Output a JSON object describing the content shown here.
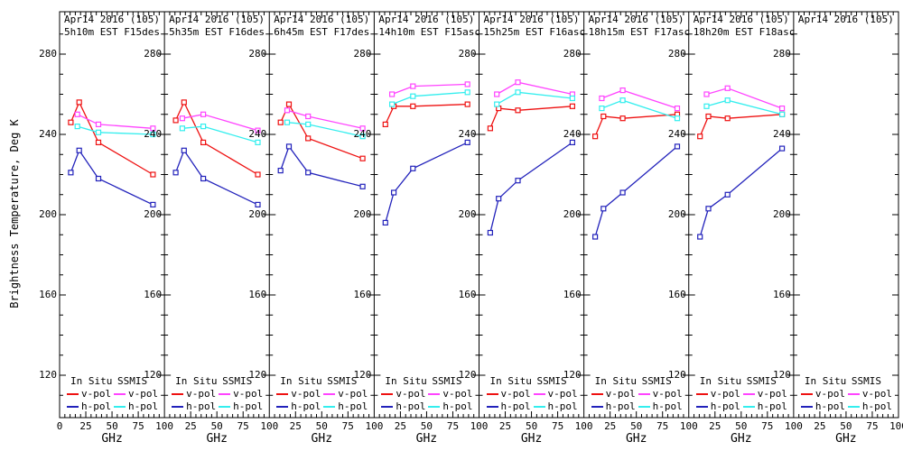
{
  "y_axis_title": "Brightness Temperature, Deg K",
  "x_axis_unit": "GHz",
  "y_tick_labels": [
    "280",
    "240",
    "200",
    "160",
    "120"
  ],
  "x_tick_labels": [
    "0",
    "25",
    "50",
    "75",
    "100"
  ],
  "legend": {
    "insitu_header": "In Situ",
    "ssmis_header": "SSMIS",
    "vpol_label": "v-pol",
    "hpol_label": "h-pol"
  },
  "colors": {
    "insitu_vpol": "#ee1111",
    "insitu_hpol": "#2222bb",
    "ssmis_vpol": "#ff44ff",
    "ssmis_hpol": "#33eeee",
    "axis": "#000000",
    "background": "#ffffff"
  },
  "chart_data": [
    {
      "type": "line",
      "title_line1": "Apr14 2016 (105)",
      "title_line2": "5h10m EST F15des",
      "xlabel": "GHz",
      "ylabel": "Brightness Temperature, Deg K",
      "xlim": [
        0,
        100
      ],
      "ylim": [
        100,
        300
      ],
      "series": [
        {
          "name": "In Situ v-pol",
          "group": "insitu",
          "pol": "v",
          "x": [
            10.7,
            18.7,
            37,
            89
          ],
          "values": [
            246,
            256,
            236,
            220
          ]
        },
        {
          "name": "In Situ h-pol",
          "group": "insitu",
          "pol": "h",
          "x": [
            10.7,
            18.7,
            37,
            89
          ],
          "values": [
            221,
            232,
            218,
            205
          ]
        },
        {
          "name": "SSMIS v-pol",
          "group": "ssmis",
          "pol": "v",
          "x": [
            17,
            37,
            89
          ],
          "values": [
            250,
            245,
            243
          ]
        },
        {
          "name": "SSMIS h-pol",
          "group": "ssmis",
          "pol": "h",
          "x": [
            17,
            37,
            89
          ],
          "values": [
            244,
            241,
            240
          ]
        }
      ]
    },
    {
      "type": "line",
      "title_line1": "Apr14 2016 (105)",
      "title_line2": "5h35m EST F16des",
      "xlabel": "GHz",
      "ylabel": "Brightness Temperature, Deg K",
      "xlim": [
        0,
        100
      ],
      "ylim": [
        100,
        300
      ],
      "series": [
        {
          "name": "In Situ v-pol",
          "group": "insitu",
          "pol": "v",
          "x": [
            10.7,
            18.7,
            37,
            89
          ],
          "values": [
            247,
            256,
            236,
            220
          ]
        },
        {
          "name": "In Situ h-pol",
          "group": "insitu",
          "pol": "h",
          "x": [
            10.7,
            18.7,
            37,
            89
          ],
          "values": [
            221,
            232,
            218,
            205
          ]
        },
        {
          "name": "SSMIS v-pol",
          "group": "ssmis",
          "pol": "v",
          "x": [
            17,
            37,
            89
          ],
          "values": [
            248,
            250,
            242
          ]
        },
        {
          "name": "SSMIS h-pol",
          "group": "ssmis",
          "pol": "h",
          "x": [
            17,
            37,
            89
          ],
          "values": [
            243,
            244,
            236
          ]
        }
      ]
    },
    {
      "type": "line",
      "title_line1": "Apr14 2016 (105)",
      "title_line2": "6h45m EST F17des",
      "xlabel": "GHz",
      "ylabel": "Brightness Temperature, Deg K",
      "xlim": [
        0,
        100
      ],
      "ylim": [
        100,
        300
      ],
      "series": [
        {
          "name": "In Situ v-pol",
          "group": "insitu",
          "pol": "v",
          "x": [
            10.7,
            18.7,
            37,
            89
          ],
          "values": [
            246,
            255,
            238,
            228
          ]
        },
        {
          "name": "In Situ h-pol",
          "group": "insitu",
          "pol": "h",
          "x": [
            10.7,
            18.7,
            37,
            89
          ],
          "values": [
            222,
            234,
            221,
            214
          ]
        },
        {
          "name": "SSMIS v-pol",
          "group": "ssmis",
          "pol": "v",
          "x": [
            17,
            37,
            89
          ],
          "values": [
            252,
            249,
            243
          ]
        },
        {
          "name": "SSMIS h-pol",
          "group": "ssmis",
          "pol": "h",
          "x": [
            17,
            37,
            89
          ],
          "values": [
            246,
            245,
            239
          ]
        }
      ]
    },
    {
      "type": "line",
      "title_line1": "Apr14 2016 (105)",
      "title_line2": "14h10m EST F15asc",
      "xlabel": "GHz",
      "ylabel": "Brightness Temperature, Deg K",
      "xlim": [
        0,
        100
      ],
      "ylim": [
        100,
        300
      ],
      "series": [
        {
          "name": "In Situ v-pol",
          "group": "insitu",
          "pol": "v",
          "x": [
            10.7,
            18.7,
            37,
            89
          ],
          "values": [
            245,
            254,
            254,
            255
          ]
        },
        {
          "name": "In Situ h-pol",
          "group": "insitu",
          "pol": "h",
          "x": [
            10.7,
            18.7,
            37,
            89
          ],
          "values": [
            196,
            211,
            223,
            236
          ]
        },
        {
          "name": "SSMIS v-pol",
          "group": "ssmis",
          "pol": "v",
          "x": [
            17,
            37,
            89
          ],
          "values": [
            260,
            264,
            265
          ]
        },
        {
          "name": "SSMIS h-pol",
          "group": "ssmis",
          "pol": "h",
          "x": [
            17,
            37,
            89
          ],
          "values": [
            255,
            259,
            261
          ]
        }
      ]
    },
    {
      "type": "line",
      "title_line1": "Apr14 2016 (105)",
      "title_line2": "15h25m EST F16asc",
      "xlabel": "GHz",
      "ylabel": "Brightness Temperature, Deg K",
      "xlim": [
        0,
        100
      ],
      "ylim": [
        100,
        300
      ],
      "series": [
        {
          "name": "In Situ v-pol",
          "group": "insitu",
          "pol": "v",
          "x": [
            10.7,
            18.7,
            37,
            89
          ],
          "values": [
            243,
            253,
            252,
            254
          ]
        },
        {
          "name": "In Situ h-pol",
          "group": "insitu",
          "pol": "h",
          "x": [
            10.7,
            18.7,
            37,
            89
          ],
          "values": [
            191,
            208,
            217,
            236
          ]
        },
        {
          "name": "SSMIS v-pol",
          "group": "ssmis",
          "pol": "v",
          "x": [
            17,
            37,
            89
          ],
          "values": [
            260,
            266,
            260
          ]
        },
        {
          "name": "SSMIS h-pol",
          "group": "ssmis",
          "pol": "h",
          "x": [
            17,
            37,
            89
          ],
          "values": [
            255,
            261,
            258
          ]
        }
      ]
    },
    {
      "type": "line",
      "title_line1": "Apr14 2016 (105)",
      "title_line2": "18h15m EST F17asc",
      "xlabel": "GHz",
      "ylabel": "Brightness Temperature, Deg K",
      "xlim": [
        0,
        100
      ],
      "ylim": [
        100,
        300
      ],
      "series": [
        {
          "name": "In Situ v-pol",
          "group": "insitu",
          "pol": "v",
          "x": [
            10.7,
            18.7,
            37,
            89
          ],
          "values": [
            239,
            249,
            248,
            250
          ]
        },
        {
          "name": "In Situ h-pol",
          "group": "insitu",
          "pol": "h",
          "x": [
            10.7,
            18.7,
            37,
            89
          ],
          "values": [
            189,
            203,
            211,
            234
          ]
        },
        {
          "name": "SSMIS v-pol",
          "group": "ssmis",
          "pol": "v",
          "x": [
            17,
            37,
            89
          ],
          "values": [
            258,
            262,
            253
          ]
        },
        {
          "name": "SSMIS h-pol",
          "group": "ssmis",
          "pol": "h",
          "x": [
            17,
            37,
            89
          ],
          "values": [
            253,
            257,
            248
          ]
        }
      ]
    },
    {
      "type": "line",
      "title_line1": "Apr14 2016 (105)",
      "title_line2": "18h20m EST F18asc",
      "xlabel": "GHz",
      "ylabel": "Brightness Temperature, Deg K",
      "xlim": [
        0,
        100
      ],
      "ylim": [
        100,
        300
      ],
      "series": [
        {
          "name": "In Situ v-pol",
          "group": "insitu",
          "pol": "v",
          "x": [
            10.7,
            18.7,
            37,
            89
          ],
          "values": [
            239,
            249,
            248,
            250
          ]
        },
        {
          "name": "In Situ h-pol",
          "group": "insitu",
          "pol": "h",
          "x": [
            10.7,
            18.7,
            37,
            89
          ],
          "values": [
            189,
            203,
            210,
            233
          ]
        },
        {
          "name": "SSMIS v-pol",
          "group": "ssmis",
          "pol": "v",
          "x": [
            17,
            37,
            89
          ],
          "values": [
            260,
            263,
            253
          ]
        },
        {
          "name": "SSMIS h-pol",
          "group": "ssmis",
          "pol": "h",
          "x": [
            17,
            37,
            89
          ],
          "values": [
            254,
            257,
            250
          ]
        }
      ]
    },
    {
      "type": "line",
      "title_line1": "Apr14 2016 (105)",
      "title_line2": "",
      "xlabel": "GHz",
      "ylabel": "Brightness Temperature, Deg K",
      "xlim": [
        0,
        100
      ],
      "ylim": [
        100,
        300
      ],
      "series": []
    }
  ]
}
